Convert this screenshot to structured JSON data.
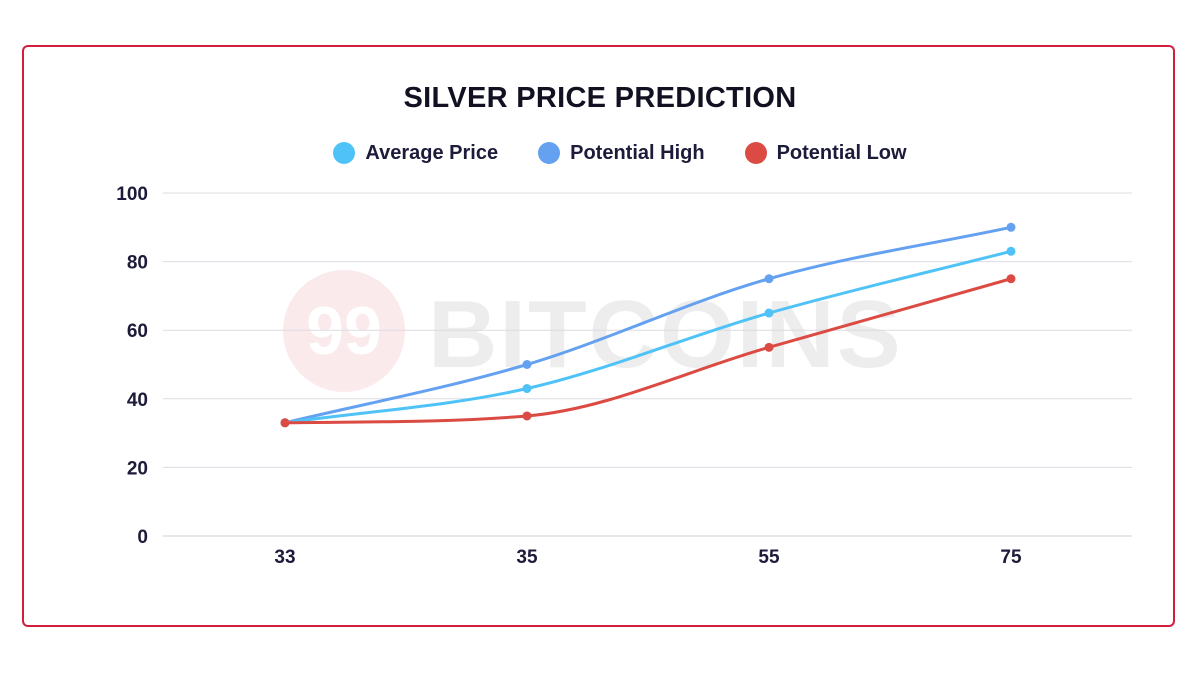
{
  "watermark": {
    "badge": "99",
    "text": "BITCOINS"
  },
  "chart_data": {
    "type": "line",
    "title": "SILVER PRICE PREDICTION",
    "xlabel": "",
    "ylabel": "",
    "x": [
      "33",
      "35",
      "55",
      "75"
    ],
    "ylim": [
      0,
      100
    ],
    "yticks": [
      0,
      20,
      40,
      60,
      80,
      100
    ],
    "grid": true,
    "legend_position": "top-center",
    "series": [
      {
        "name": "Average Price",
        "color": "#4fc3f7",
        "values": [
          33,
          43,
          65,
          83
        ]
      },
      {
        "name": "Potential High",
        "color": "#64a1f0",
        "values": [
          33,
          50,
          75,
          90
        ]
      },
      {
        "name": "Potential Low",
        "color": "#db4b43",
        "values": [
          33,
          35,
          55,
          75
        ]
      }
    ]
  }
}
